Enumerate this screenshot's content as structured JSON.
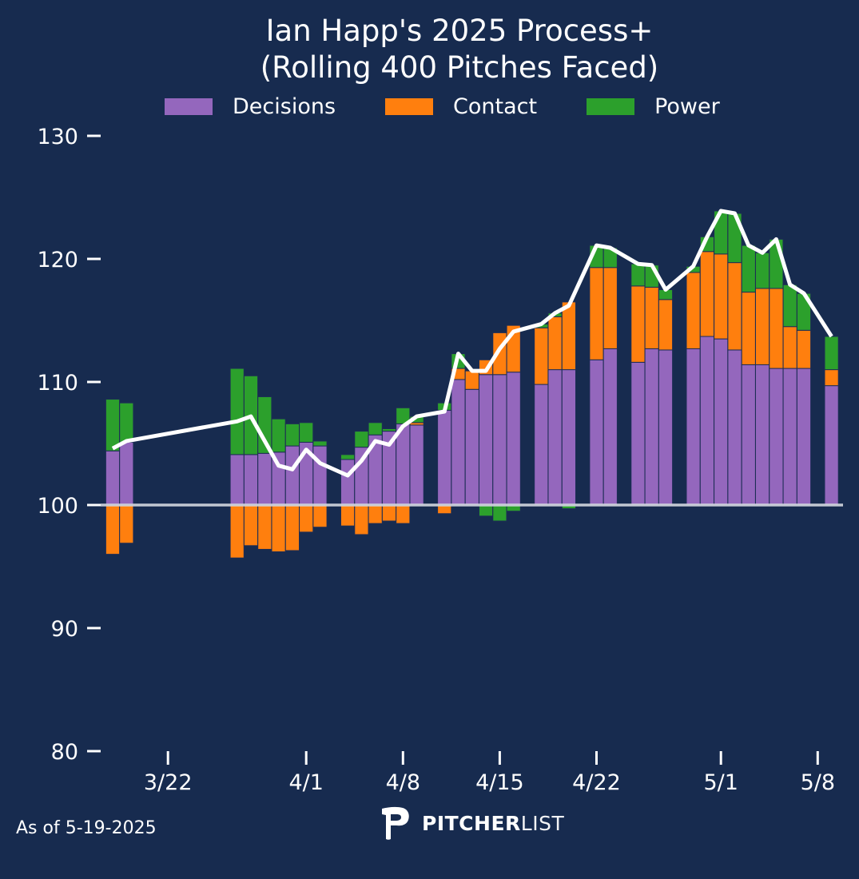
{
  "footer": {
    "as_of": "As of 5-19-2025",
    "brand_bold": "PITCHER",
    "brand_light": "LIST"
  },
  "colors": {
    "background": "#172b4f",
    "decisions": "#9467bd",
    "contact": "#ff7f0e",
    "power": "#2ca02c",
    "line": "#ffffff",
    "reference": "#d5d9e0"
  },
  "chart_data": {
    "type": "bar",
    "stacked": true,
    "title": "Ian Happ's 2025 Process+",
    "subtitle": "(Rolling 400 Pitches Faced)",
    "xlabel": "",
    "ylabel": "",
    "ylim": [
      80,
      130
    ],
    "yticks": [
      80,
      90,
      100,
      110,
      120,
      130
    ],
    "baseline": 100,
    "legend_position": "top-center",
    "grid": false,
    "xticks": [
      {
        "label": "3/22",
        "date": "3/22"
      },
      {
        "label": "4/1",
        "date": "4/1"
      },
      {
        "label": "4/8",
        "date": "4/8"
      },
      {
        "label": "4/15",
        "date": "4/15"
      },
      {
        "label": "4/22",
        "date": "4/22"
      },
      {
        "label": "5/1",
        "date": "5/1"
      },
      {
        "label": "5/8",
        "date": "5/8"
      }
    ],
    "categories": [
      "3/18",
      "3/19",
      "3/27",
      "3/28",
      "3/29",
      "3/30",
      "3/31",
      "4/1",
      "4/2",
      "4/4",
      "4/5",
      "4/6",
      "4/7",
      "4/8",
      "4/9",
      "4/11",
      "4/12",
      "4/13",
      "4/14",
      "4/15",
      "4/16",
      "4/18",
      "4/19",
      "4/20",
      "4/22",
      "4/23",
      "4/25",
      "4/26",
      "4/27",
      "4/29",
      "4/30",
      "5/1",
      "5/2",
      "5/3",
      "5/4",
      "5/5",
      "5/6",
      "5/7",
      "5/9"
    ],
    "series": [
      {
        "name": "Decisions",
        "values": [
          4.4,
          5.1,
          4.1,
          4.1,
          4.2,
          4.3,
          4.8,
          5.1,
          4.8,
          3.7,
          4.7,
          5.7,
          6.0,
          6.6,
          6.5,
          7.7,
          10.2,
          9.4,
          10.6,
          10.6,
          10.8,
          9.8,
          11.0,
          11.0,
          11.8,
          12.7,
          11.6,
          12.7,
          12.6,
          12.7,
          13.7,
          13.5,
          12.6,
          11.4,
          11.4,
          11.1,
          11.1,
          11.1,
          9.7
        ]
      },
      {
        "name": "Contact",
        "values": [
          -4.0,
          -3.1,
          -4.3,
          -3.3,
          -3.6,
          -3.8,
          -3.7,
          -2.2,
          -1.8,
          -1.7,
          -2.4,
          -1.5,
          -1.3,
          -1.5,
          0.2,
          -0.7,
          0.9,
          1.5,
          1.2,
          3.4,
          3.8,
          4.6,
          4.3,
          5.5,
          7.5,
          6.6,
          6.2,
          5.0,
          4.1,
          6.2,
          6.9,
          6.9,
          7.1,
          5.9,
          6.2,
          6.5,
          3.4,
          3.1,
          1.3
        ]
      },
      {
        "name": "Power",
        "values": [
          4.2,
          3.2,
          7.0,
          6.4,
          4.6,
          2.7,
          1.8,
          1.6,
          0.4,
          0.4,
          1.3,
          1.0,
          0.2,
          1.3,
          0.5,
          0.6,
          1.2,
          0.0,
          -0.9,
          -1.3,
          -0.5,
          0.3,
          0.3,
          -0.3,
          1.8,
          1.6,
          1.8,
          1.8,
          0.8,
          0.5,
          1.2,
          3.5,
          4.0,
          3.8,
          2.9,
          4.0,
          3.4,
          3.0,
          2.7
        ]
      }
    ],
    "line": {
      "name": "Process+",
      "values": [
        104.6,
        105.2,
        106.8,
        107.2,
        105.2,
        103.2,
        102.9,
        104.5,
        103.4,
        102.4,
        103.6,
        105.2,
        104.9,
        106.4,
        107.2,
        107.6,
        112.3,
        110.9,
        110.9,
        112.7,
        114.1,
        114.7,
        115.6,
        116.2,
        121.1,
        120.9,
        119.6,
        119.5,
        117.5,
        119.4,
        121.8,
        123.9,
        123.7,
        121.1,
        120.5,
        121.6,
        117.9,
        117.2,
        113.7
      ]
    }
  }
}
